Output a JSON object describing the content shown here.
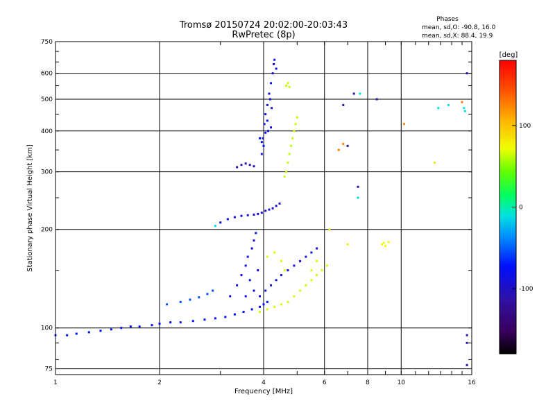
{
  "chart_data": {
    "type": "scatter",
    "title": "Tromsø 20150724 20:02:00-20:03:43",
    "subtitle": "RwPretec (8p)",
    "xlabel": "Frequency [MHz]",
    "ylabel": "Stationary phase Virtual Height [km]",
    "x_scale": "log",
    "y_scale": "log",
    "xlim": [
      1,
      16
    ],
    "ylim": [
      72,
      750
    ],
    "x_ticks": [
      1,
      2,
      4,
      6,
      8,
      10,
      16
    ],
    "x_tick_labels": [
      "1",
      "2",
      "4",
      "6",
      "8",
      "10",
      "16"
    ],
    "y_ticks": [
      75,
      100,
      200,
      300,
      400,
      500,
      600,
      750
    ],
    "y_tick_labels": [
      "75",
      "100",
      "200",
      "300",
      "400",
      "500",
      "600",
      "750"
    ],
    "grid": true,
    "phase_stats": {
      "header": "Phases",
      "o_line": "mean, sd,O: -90.8, 16.0",
      "x_line": "mean, sd,X:  88.4, 19.9"
    },
    "colorbar": {
      "unit": "[deg]",
      "range": [
        -180,
        180
      ],
      "ticks": [
        100,
        0,
        -100
      ],
      "tick_labels": [
        "100",
        "0",
        "-100"
      ]
    },
    "series": [
      {
        "color_value": -100,
        "points": [
          [
            1.0,
            95
          ],
          [
            1.08,
            95
          ],
          [
            1.15,
            96
          ],
          [
            1.25,
            97
          ],
          [
            1.35,
            98
          ],
          [
            1.45,
            99
          ],
          [
            1.55,
            100
          ],
          [
            1.65,
            101
          ],
          [
            1.75,
            101
          ],
          [
            1.9,
            102
          ],
          [
            2.0,
            103
          ],
          [
            2.15,
            104
          ],
          [
            2.3,
            104
          ],
          [
            2.5,
            105
          ],
          [
            2.7,
            106
          ],
          [
            2.9,
            107
          ],
          [
            3.1,
            108
          ],
          [
            3.3,
            110
          ],
          [
            3.5,
            112
          ],
          [
            3.7,
            114
          ],
          [
            3.9,
            116
          ],
          [
            4.0,
            118
          ],
          [
            4.1,
            120
          ]
        ]
      },
      {
        "color_value": -80,
        "points": [
          [
            2.1,
            118
          ],
          [
            2.3,
            120
          ],
          [
            2.45,
            122
          ],
          [
            2.6,
            124
          ],
          [
            2.75,
            127
          ],
          [
            2.85,
            130
          ]
        ]
      },
      {
        "color_value": -105,
        "points": [
          [
            3.2,
            125
          ],
          [
            3.35,
            135
          ],
          [
            3.45,
            145
          ],
          [
            3.55,
            155
          ],
          [
            3.6,
            165
          ],
          [
            3.7,
            175
          ],
          [
            3.75,
            185
          ],
          [
            3.8,
            195
          ],
          [
            3.65,
            140
          ],
          [
            3.75,
            130
          ],
          [
            3.85,
            150
          ],
          [
            3.55,
            125
          ]
        ]
      },
      {
        "color_value": -110,
        "points": [
          [
            3.9,
            125
          ],
          [
            4.05,
            130
          ],
          [
            4.2,
            135
          ],
          [
            4.35,
            140
          ],
          [
            4.5,
            145
          ],
          [
            4.7,
            150
          ],
          [
            4.9,
            155
          ],
          [
            5.1,
            160
          ],
          [
            5.3,
            165
          ],
          [
            5.5,
            170
          ],
          [
            5.7,
            175
          ]
        ]
      },
      {
        "color_value": -105,
        "points": [
          [
            3.0,
            210
          ],
          [
            3.15,
            215
          ],
          [
            3.3,
            218
          ],
          [
            3.45,
            220
          ],
          [
            3.6,
            221
          ],
          [
            3.75,
            222
          ],
          [
            3.85,
            223
          ]
        ]
      },
      {
        "color_value": -110,
        "points": [
          [
            3.95,
            225
          ],
          [
            4.05,
            228
          ],
          [
            4.15,
            230
          ],
          [
            4.25,
            232
          ],
          [
            4.35,
            236
          ],
          [
            4.45,
            240
          ]
        ]
      },
      {
        "color_value": -115,
        "points": [
          [
            3.35,
            310
          ],
          [
            3.45,
            315
          ],
          [
            3.55,
            318
          ],
          [
            3.65,
            315
          ],
          [
            3.75,
            312
          ]
        ]
      },
      {
        "color_value": -108,
        "points": [
          [
            3.95,
            340
          ],
          [
            3.98,
            380
          ],
          [
            4.02,
            420
          ],
          [
            4.05,
            450
          ],
          [
            4.1,
            480
          ],
          [
            4.15,
            520
          ],
          [
            4.2,
            560
          ],
          [
            4.25,
            600
          ],
          [
            4.28,
            640
          ],
          [
            4.3,
            660
          ],
          [
            4.18,
            500
          ],
          [
            4.22,
            470
          ],
          [
            4.12,
            400
          ],
          [
            4.35,
            620
          ]
        ]
      },
      {
        "color_value": -100,
        "points": [
          [
            3.9,
            380
          ],
          [
            4.0,
            360
          ],
          [
            4.1,
            430
          ],
          [
            4.2,
            410
          ],
          [
            4.05,
            395
          ],
          [
            3.95,
            370
          ]
        ]
      },
      {
        "color_value": 85,
        "points": [
          [
            3.9,
            112
          ],
          [
            4.1,
            114
          ],
          [
            4.3,
            116
          ],
          [
            4.5,
            118
          ],
          [
            4.7,
            120
          ],
          [
            4.9,
            125
          ],
          [
            5.1,
            130
          ],
          [
            5.3,
            135
          ],
          [
            5.5,
            140
          ],
          [
            5.7,
            145
          ],
          [
            5.9,
            150
          ],
          [
            6.1,
            155
          ]
        ]
      },
      {
        "color_value": 80,
        "points": [
          [
            4.6,
            290
          ],
          [
            4.65,
            300
          ],
          [
            4.7,
            320
          ],
          [
            4.75,
            340
          ],
          [
            4.8,
            360
          ],
          [
            4.85,
            380
          ],
          [
            4.9,
            400
          ],
          [
            4.95,
            420
          ],
          [
            5.0,
            440
          ],
          [
            4.7,
            560
          ],
          [
            4.65,
            550
          ],
          [
            4.75,
            545
          ]
        ]
      },
      {
        "color_value": 90,
        "points": [
          [
            4.5,
            160
          ],
          [
            4.6,
            150
          ],
          [
            4.3,
            170
          ],
          [
            4.1,
            165
          ],
          [
            5.5,
            150
          ],
          [
            5.7,
            160
          ]
        ]
      },
      {
        "color_value": 100,
        "points": [
          [
            8.8,
            180
          ],
          [
            8.9,
            182
          ],
          [
            9.0,
            178
          ],
          [
            9.2,
            183
          ]
        ]
      },
      {
        "color_value": -120,
        "points": [
          [
            6.8,
            480
          ],
          [
            7.0,
            360
          ],
          [
            7.3,
            520
          ],
          [
            8.5,
            500
          ],
          [
            7.5,
            270
          ],
          [
            15.5,
            600
          ],
          [
            15.5,
            95
          ],
          [
            15.5,
            90
          ],
          [
            15.5,
            77
          ]
        ]
      },
      {
        "color_value": -30,
        "points": [
          [
            12.8,
            470
          ],
          [
            13.7,
            480
          ],
          [
            15.2,
            470
          ],
          [
            15.3,
            460
          ],
          [
            7.6,
            520
          ],
          [
            7.5,
            250
          ],
          [
            2.9,
            205
          ]
        ]
      },
      {
        "color_value": 150,
        "points": [
          [
            6.6,
            350
          ],
          [
            6.8,
            365
          ],
          [
            10.2,
            420
          ],
          [
            15.0,
            490
          ]
        ]
      },
      {
        "color_value": 110,
        "points": [
          [
            12.5,
            320
          ],
          [
            7.0,
            180
          ],
          [
            6.2,
            200
          ]
        ]
      }
    ]
  }
}
